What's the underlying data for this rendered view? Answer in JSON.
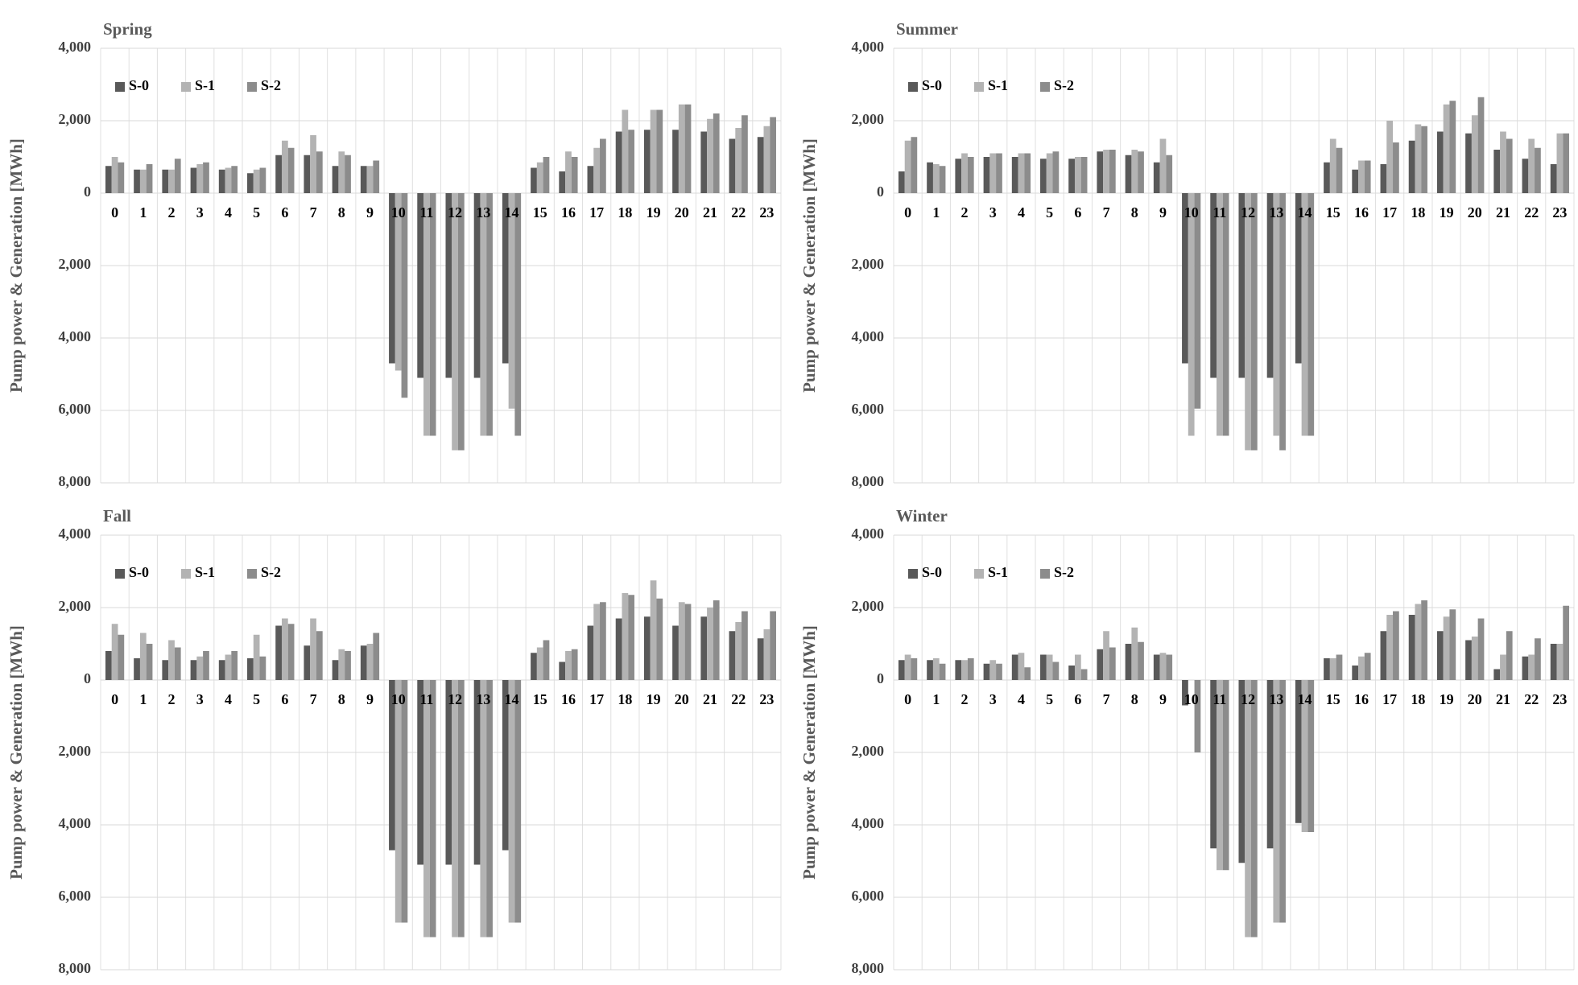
{
  "chart_data": [
    {
      "type": "bar",
      "title": "Spring",
      "ylabel": "Pump power & Generation [MWh]",
      "categories": [
        "0",
        "1",
        "2",
        "3",
        "4",
        "5",
        "6",
        "7",
        "8",
        "9",
        "10",
        "11",
        "12",
        "13",
        "14",
        "15",
        "16",
        "17",
        "18",
        "19",
        "20",
        "21",
        "22",
        "23"
      ],
      "series": [
        {
          "name": "S-0",
          "color": "#595959",
          "values": [
            750,
            650,
            650,
            700,
            650,
            550,
            1050,
            1050,
            750,
            750,
            -4700,
            -5100,
            -5100,
            -5100,
            -4700,
            700,
            600,
            750,
            1700,
            1750,
            1750,
            1700,
            1500,
            1550
          ]
        },
        {
          "name": "S-1",
          "color": "#b3b3b3",
          "values": [
            1000,
            650,
            650,
            800,
            700,
            650,
            1450,
            1600,
            1150,
            750,
            -4900,
            -6700,
            -7100,
            -6700,
            -5950,
            850,
            1150,
            1250,
            2300,
            2300,
            2450,
            2050,
            1800,
            1850
          ]
        },
        {
          "name": "S-2",
          "color": "#8c8c8c",
          "values": [
            850,
            800,
            950,
            850,
            750,
            700,
            1250,
            1150,
            1050,
            900,
            -5650,
            -6700,
            -7100,
            -6700,
            -6700,
            1000,
            1000,
            1500,
            1750,
            2300,
            2450,
            2200,
            2150,
            2100
          ]
        }
      ],
      "ylim": [
        -8000,
        4000
      ],
      "yticks": [
        {
          "value": 4000,
          "label": "4,000"
        },
        {
          "value": 2000,
          "label": "2,000"
        },
        0,
        {
          "value": -2000,
          "label": "2,000"
        },
        {
          "value": -4000,
          "label": "4,000"
        },
        {
          "value": -6000,
          "label": "6,000"
        },
        {
          "value": -8000,
          "label": "8,000"
        }
      ],
      "grid": true,
      "legend": "top-left"
    },
    {
      "type": "bar",
      "title": "Summer",
      "ylabel": "Pump power & Generation [MWh]",
      "categories": [
        "0",
        "1",
        "2",
        "3",
        "4",
        "5",
        "6",
        "7",
        "8",
        "9",
        "10",
        "11",
        "12",
        "13",
        "14",
        "15",
        "16",
        "17",
        "18",
        "19",
        "20",
        "21",
        "22",
        "23"
      ],
      "series": [
        {
          "name": "S-0",
          "color": "#595959",
          "values": [
            600,
            850,
            950,
            1000,
            1000,
            950,
            950,
            1150,
            1050,
            850,
            -4700,
            -5100,
            -5100,
            -5100,
            -4700,
            850,
            650,
            800,
            1450,
            1700,
            1650,
            1200,
            950,
            800
          ]
        },
        {
          "name": "S-1",
          "color": "#b3b3b3",
          "values": [
            1450,
            800,
            1100,
            1100,
            1100,
            1100,
            1000,
            1200,
            1200,
            1500,
            -6700,
            -6700,
            -7100,
            -6700,
            -6700,
            1500,
            900,
            2000,
            1900,
            2450,
            2150,
            1700,
            1500,
            1650
          ]
        },
        {
          "name": "S-2",
          "color": "#8c8c8c",
          "values": [
            1550,
            750,
            1000,
            1100,
            1100,
            1150,
            1000,
            1200,
            1150,
            1050,
            -5950,
            -6700,
            -7100,
            -7100,
            -6700,
            1250,
            900,
            1400,
            1850,
            2550,
            2650,
            1500,
            1250,
            1650
          ]
        }
      ],
      "ylim": [
        -8000,
        4000
      ],
      "yticks": [
        {
          "value": 4000,
          "label": "4,000"
        },
        {
          "value": 2000,
          "label": "2,000"
        },
        0,
        {
          "value": -2000,
          "label": "2,000"
        },
        {
          "value": -4000,
          "label": "4,000"
        },
        {
          "value": -6000,
          "label": "6,000"
        },
        {
          "value": -8000,
          "label": "8,000"
        }
      ],
      "grid": true,
      "legend": "top-left"
    },
    {
      "type": "bar",
      "title": "Fall",
      "ylabel": "Pump power & Generation [MWh]",
      "categories": [
        "0",
        "1",
        "2",
        "3",
        "4",
        "5",
        "6",
        "7",
        "8",
        "9",
        "10",
        "11",
        "12",
        "13",
        "14",
        "15",
        "16",
        "17",
        "18",
        "19",
        "20",
        "21",
        "22",
        "23"
      ],
      "series": [
        {
          "name": "S-0",
          "color": "#595959",
          "values": [
            800,
            600,
            550,
            550,
            550,
            600,
            1500,
            950,
            550,
            950,
            -4700,
            -5100,
            -5100,
            -5100,
            -4700,
            750,
            500,
            1500,
            1700,
            1750,
            1500,
            1750,
            1350,
            1150
          ]
        },
        {
          "name": "S-1",
          "color": "#b3b3b3",
          "values": [
            1550,
            1300,
            1100,
            650,
            700,
            1250,
            1700,
            1700,
            850,
            1000,
            -6700,
            -7100,
            -7100,
            -7100,
            -6700,
            900,
            800,
            2100,
            2400,
            2750,
            2150,
            2000,
            1600,
            1400
          ]
        },
        {
          "name": "S-2",
          "color": "#8c8c8c",
          "values": [
            1250,
            1000,
            900,
            800,
            800,
            650,
            1550,
            1350,
            800,
            1300,
            -6700,
            -7100,
            -7100,
            -7100,
            -6700,
            1100,
            850,
            2150,
            2350,
            2250,
            2100,
            2200,
            1900,
            1900
          ]
        }
      ],
      "ylim": [
        -8000,
        4000
      ],
      "yticks": [
        {
          "value": 4000,
          "label": "4,000"
        },
        {
          "value": 2000,
          "label": "2,000"
        },
        0,
        {
          "value": -2000,
          "label": "2,000"
        },
        {
          "value": -4000,
          "label": "4,000"
        },
        {
          "value": -6000,
          "label": "6,000"
        },
        {
          "value": -8000,
          "label": "8,000"
        }
      ],
      "grid": true,
      "legend": "top-left"
    },
    {
      "type": "bar",
      "title": "Winter",
      "ylabel": "Pump power & Generation [MWh]",
      "categories": [
        "0",
        "1",
        "2",
        "3",
        "4",
        "5",
        "6",
        "7",
        "8",
        "9",
        "10",
        "11",
        "12",
        "13",
        "14",
        "15",
        "16",
        "17",
        "18",
        "19",
        "20",
        "21",
        "22",
        "23"
      ],
      "series": [
        {
          "name": "S-0",
          "color": "#595959",
          "values": [
            550,
            550,
            550,
            450,
            700,
            700,
            400,
            850,
            1000,
            700,
            -700,
            -4650,
            -5050,
            -4650,
            -3950,
            600,
            400,
            1350,
            1800,
            1350,
            1100,
            300,
            650,
            1000
          ]
        },
        {
          "name": "S-1",
          "color": "#b3b3b3",
          "values": [
            700,
            600,
            550,
            550,
            750,
            700,
            700,
            1350,
            1450,
            750,
            0,
            -5250,
            -7100,
            -6700,
            -4200,
            600,
            650,
            1800,
            2100,
            1750,
            1200,
            700,
            700,
            1000
          ]
        },
        {
          "name": "S-2",
          "color": "#8c8c8c",
          "values": [
            600,
            450,
            600,
            450,
            350,
            500,
            300,
            900,
            1050,
            700,
            -2000,
            -5250,
            -7100,
            -6700,
            -4200,
            700,
            750,
            1900,
            2200,
            1950,
            1700,
            1350,
            1150,
            2050
          ]
        }
      ],
      "ylim": [
        -8000,
        4000
      ],
      "yticks": [
        {
          "value": 4000,
          "label": "4,000"
        },
        {
          "value": 2000,
          "label": "2,000"
        },
        0,
        {
          "value": -2000,
          "label": "2,000"
        },
        {
          "value": -4000,
          "label": "4,000"
        },
        {
          "value": -6000,
          "label": "6,000"
        },
        {
          "value": -8000,
          "label": "8,000"
        }
      ],
      "grid": true,
      "legend": "top-left"
    }
  ]
}
